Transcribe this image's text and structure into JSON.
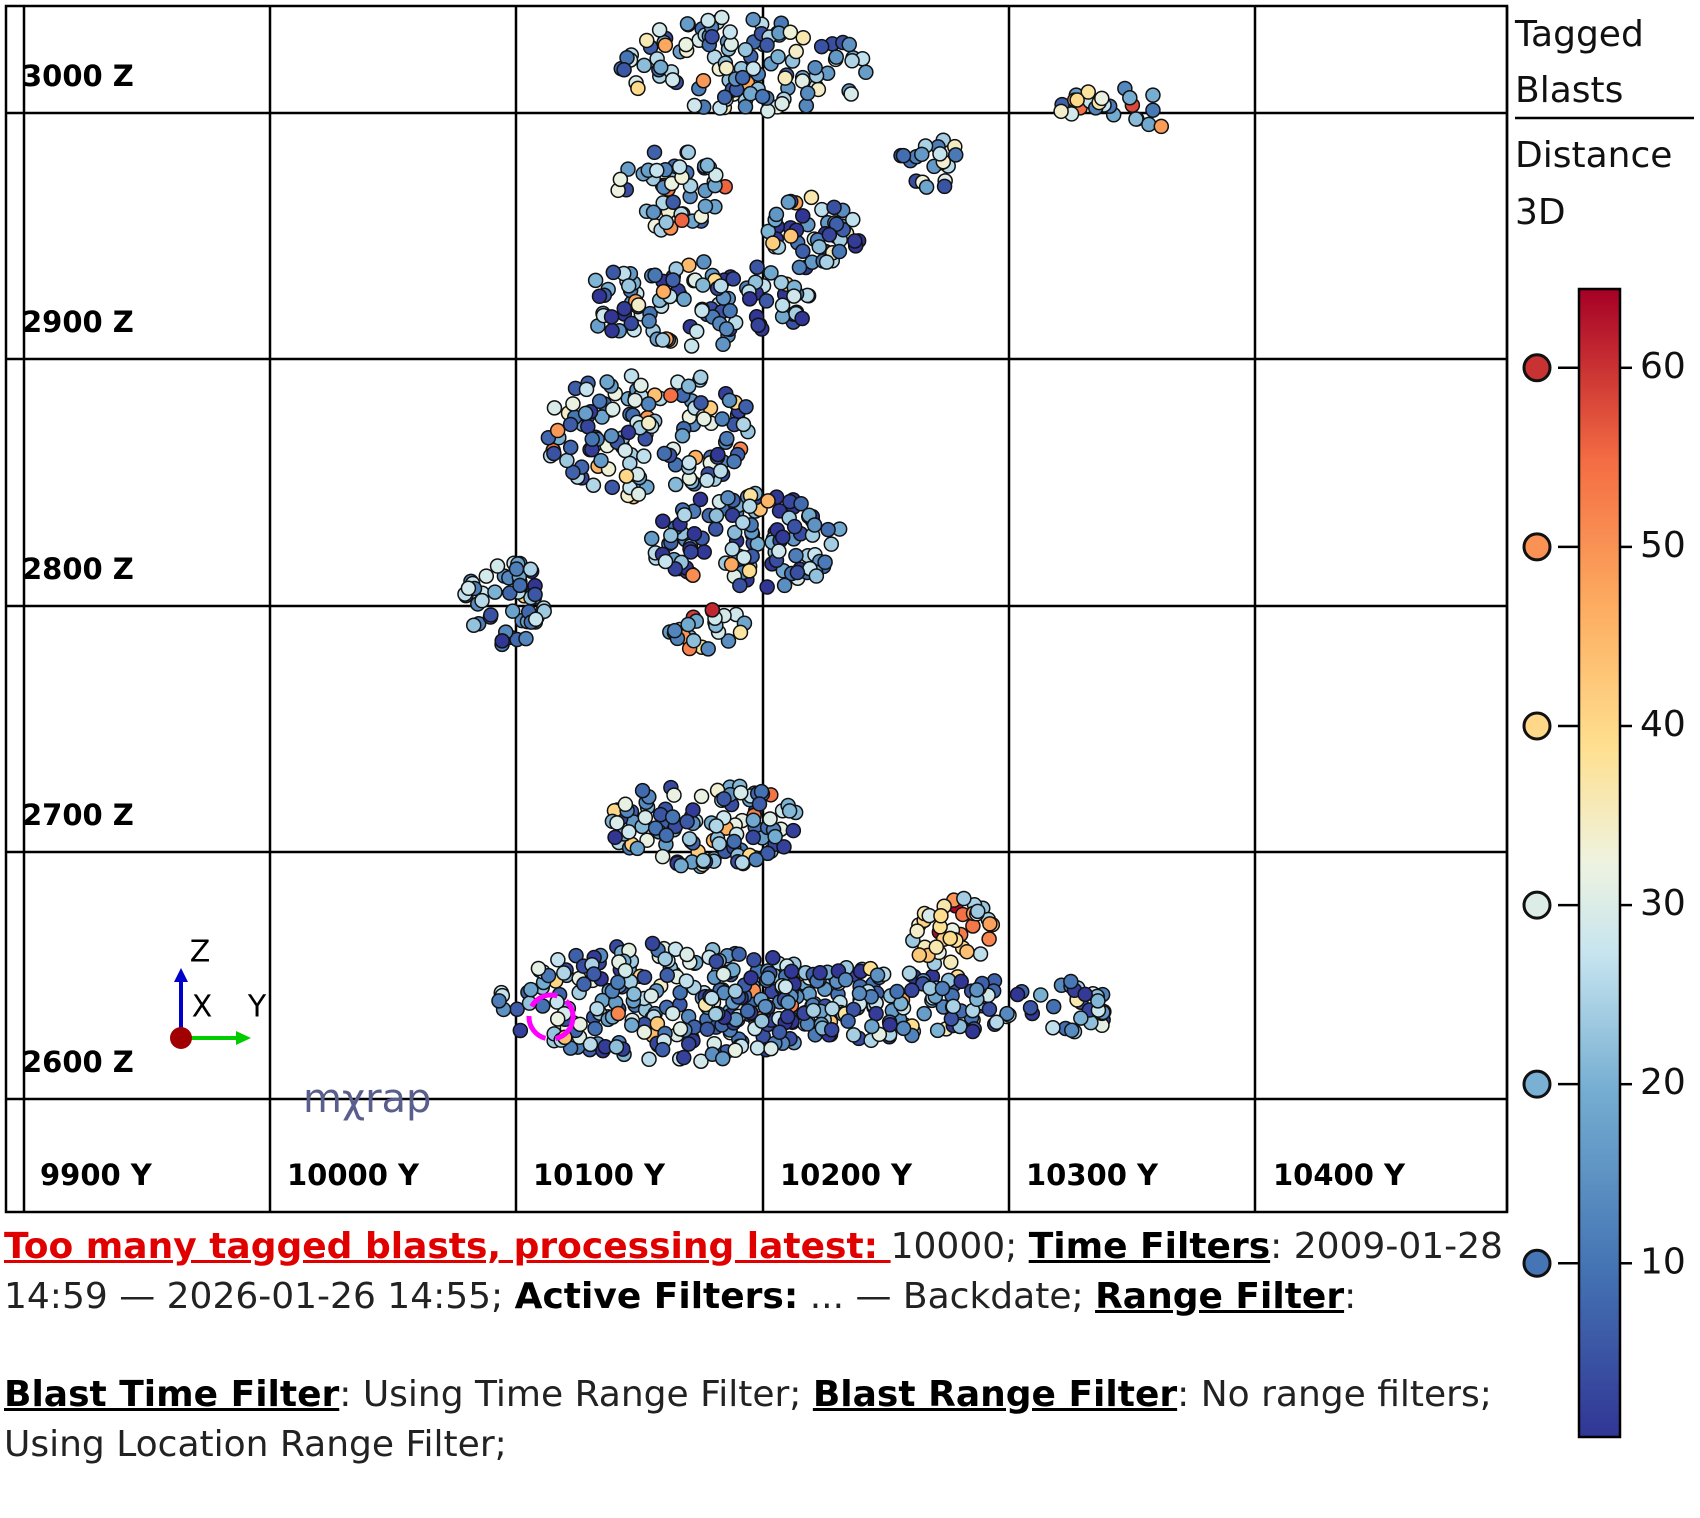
{
  "viewer": {
    "z_labels": [
      "3000 Z",
      "2900 Z",
      "2800 Z",
      "2700 Z",
      "2600 Z"
    ],
    "y_labels": [
      "9900 Y",
      "10000 Y",
      "10100 Y",
      "10200 Y",
      "10300 Y",
      "10400 Y"
    ],
    "triad": {
      "z": "Z",
      "x": "X",
      "y": "Y"
    },
    "logo": "mχrap"
  },
  "legend": {
    "title": [
      "Tagged",
      "Blasts"
    ],
    "subtitle": [
      "Distance",
      "3D"
    ],
    "colorbar": {
      "lim": [
        0.3,
        64.4
      ],
      "ticks": [
        10,
        20,
        30,
        40,
        50,
        60
      ]
    }
  },
  "status": [
    [
      {
        "text": "Too many tagged blasts, processing latest: ",
        "style": "warn"
      },
      {
        "text": "10000; ",
        "style": "plain"
      },
      {
        "text": "Time Filters",
        "style": "bu"
      },
      {
        "text": ": 2009-01-28 14:59 — 2026-01-26 14:55; ",
        "style": "plain"
      },
      {
        "text": "Active Filters:",
        "style": "b"
      },
      {
        "text": " ... — Backdate; ",
        "style": "plain"
      },
      {
        "text": "Range Filter",
        "style": "bu"
      },
      {
        "text": ":",
        "style": "plain"
      }
    ],
    [
      {
        "text": "Blast Time Filter",
        "style": "bu"
      },
      {
        "text": ": Using Time Range Filter; ",
        "style": "plain"
      },
      {
        "text": "Blast Range Filter",
        "style": "bu"
      },
      {
        "text": ": No range filters; Using Location Range Filter;",
        "style": "plain"
      }
    ]
  ]
}
